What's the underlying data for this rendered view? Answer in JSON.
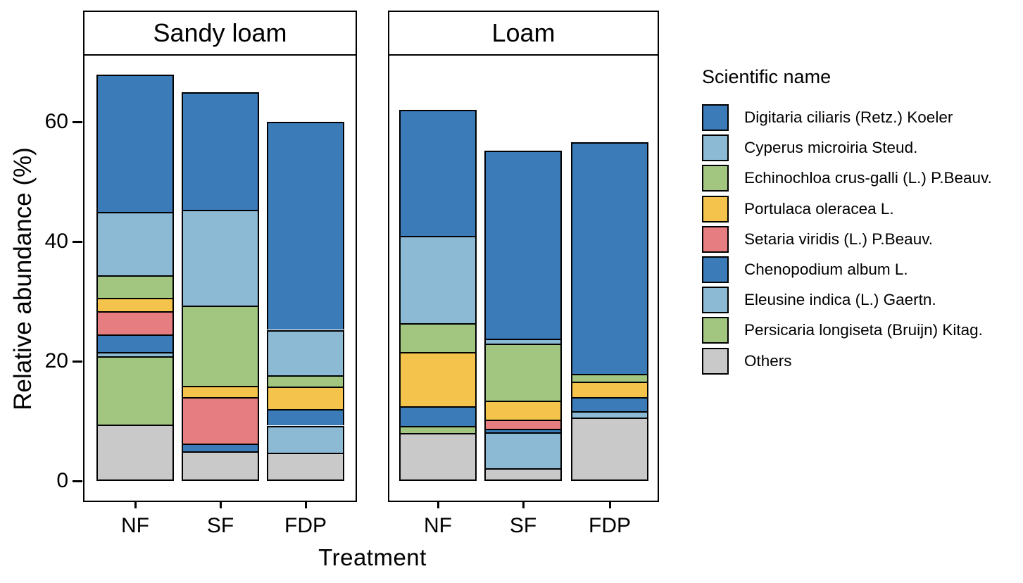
{
  "chart_data": {
    "type": "bar",
    "stacked": true,
    "title": "",
    "xlabel": "Treatment",
    "ylabel": "Relative abundance (%)",
    "yticks": [
      0,
      20,
      40,
      60
    ],
    "ylim": [
      0,
      71
    ],
    "grid": false,
    "legend_position": "right",
    "legend_title": "Scientific name",
    "legend": [
      {
        "label": "Digitaria ciliaris (Retz.) Koeler",
        "color": "#3B7BB8"
      },
      {
        "label": "Cyperus microiria Steud.",
        "color": "#8CBAD5"
      },
      {
        "label": "Echinochloa crus-galli (L.) P.Beauv.",
        "color": "#A2C67F"
      },
      {
        "label": "Portulaca oleracea L.",
        "color": "#F3C34C"
      },
      {
        "label": "Setaria viridis (L.) P.Beauv.",
        "color": "#E67E81"
      },
      {
        "label": "Chenopodium album L.",
        "color": "#3B7BB8"
      },
      {
        "label": "Eleusine indica (L.) Gaertn.",
        "color": "#8CBAD5"
      },
      {
        "label": "Persicaria longiseta (Bruijn) Kitag.",
        "color": "#A2C67F"
      },
      {
        "label": "Others",
        "color": "#C9C9C9"
      }
    ],
    "stack_order_bottom_to_top": [
      "Others",
      "Persicaria longiseta (Bruijn) Kitag.",
      "Eleusine indica (L.) Gaertn.",
      "Chenopodium album L.",
      "Setaria viridis (L.) P.Beauv.",
      "Portulaca oleracea L.",
      "Echinochloa crus-galli (L.) P.Beauv.",
      "Cyperus microiria Steud.",
      "Digitaria ciliaris (Retz.) Koeler"
    ],
    "facets": [
      {
        "label": "Sandy loam",
        "categories": [
          "NF",
          "SF",
          "FDP"
        ],
        "bars": [
          {
            "category": "NF",
            "total": 67.6,
            "segments": [
              {
                "name": "Others",
                "value": 9.2
              },
              {
                "name": "Persicaria longiseta (Bruijn) Kitag.",
                "value": 11.4
              },
              {
                "name": "Eleusine indica (L.) Gaertn.",
                "value": 0.7
              },
              {
                "name": "Chenopodium album L.",
                "value": 2.9
              },
              {
                "name": "Setaria viridis (L.) P.Beauv.",
                "value": 3.9
              },
              {
                "name": "Portulaca oleracea L.",
                "value": 2.3
              },
              {
                "name": "Echinochloa crus-galli (L.) P.Beauv.",
                "value": 3.7
              },
              {
                "name": "Cyperus microiria Steud.",
                "value": 10.6
              },
              {
                "name": "Digitaria ciliaris (Retz.) Koeler",
                "value": 22.9
              }
            ]
          },
          {
            "category": "SF",
            "total": 64.7,
            "segments": [
              {
                "name": "Others",
                "value": 4.7
              },
              {
                "name": "Chenopodium album L.",
                "value": 1.3
              },
              {
                "name": "Setaria viridis (L.) P.Beauv.",
                "value": 7.8
              },
              {
                "name": "Portulaca oleracea L.",
                "value": 1.8
              },
              {
                "name": "Echinochloa crus-galli (L.) P.Beauv.",
                "value": 13.5
              },
              {
                "name": "Cyperus microiria Steud.",
                "value": 16.0
              },
              {
                "name": "Digitaria ciliaris (Retz.) Koeler",
                "value": 19.6
              }
            ]
          },
          {
            "category": "FDP",
            "total": 59.8,
            "segments": [
              {
                "name": "Others",
                "value": 4.5
              },
              {
                "name": "Eleusine indica (L.) Gaertn.",
                "value": 4.5
              },
              {
                "name": "Chenopodium album L.",
                "value": 2.8
              },
              {
                "name": "Portulaca oleracea L.",
                "value": 3.7
              },
              {
                "name": "Echinochloa crus-galli (L.) P.Beauv.",
                "value": 1.9
              },
              {
                "name": "Cyperus microiria Steud.",
                "value": 7.6
              },
              {
                "name": "Digitaria ciliaris (Retz.) Koeler",
                "value": 34.8
              }
            ]
          }
        ]
      },
      {
        "label": "Loam",
        "categories": [
          "NF",
          "SF",
          "FDP"
        ],
        "bars": [
          {
            "category": "NF",
            "total": 61.8,
            "segments": [
              {
                "name": "Others",
                "value": 7.8
              },
              {
                "name": "Persicaria longiseta (Bruijn) Kitag.",
                "value": 1.1
              },
              {
                "name": "Chenopodium album L.",
                "value": 3.3
              },
              {
                "name": "Portulaca oleracea L.",
                "value": 9.1
              },
              {
                "name": "Echinochloa crus-galli (L.) P.Beauv.",
                "value": 4.8
              },
              {
                "name": "Cyperus microiria Steud.",
                "value": 14.6
              },
              {
                "name": "Digitaria ciliaris (Retz.) Koeler",
                "value": 21.1
              }
            ]
          },
          {
            "category": "SF",
            "total": 54.9,
            "segments": [
              {
                "name": "Others",
                "value": 1.9
              },
              {
                "name": "Eleusine indica (L.) Gaertn.",
                "value": 6.0
              },
              {
                "name": "Chenopodium album L.",
                "value": 0.6
              },
              {
                "name": "Setaria viridis (L.) P.Beauv.",
                "value": 1.5
              },
              {
                "name": "Portulaca oleracea L.",
                "value": 3.2
              },
              {
                "name": "Echinochloa crus-galli (L.) P.Beauv.",
                "value": 9.5
              },
              {
                "name": "Cyperus microiria Steud.",
                "value": 0.8
              },
              {
                "name": "Digitaria ciliaris (Retz.) Koeler",
                "value": 31.4
              }
            ]
          },
          {
            "category": "FDP",
            "total": 56.4,
            "segments": [
              {
                "name": "Others",
                "value": 10.3
              },
              {
                "name": "Eleusine indica (L.) Gaertn.",
                "value": 1.1
              },
              {
                "name": "Chenopodium album L.",
                "value": 2.4
              },
              {
                "name": "Portulaca oleracea L.",
                "value": 2.5
              },
              {
                "name": "Echinochloa crus-galli (L.) P.Beauv.",
                "value": 1.3
              },
              {
                "name": "Digitaria ciliaris (Retz.) Koeler",
                "value": 38.8
              }
            ]
          }
        ]
      }
    ]
  }
}
